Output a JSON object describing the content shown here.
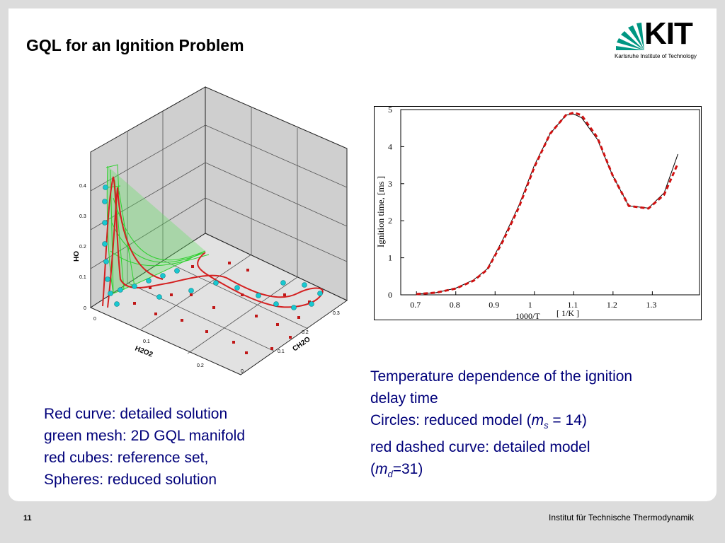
{
  "slide": {
    "title": "GQL for an Ignition Problem",
    "page_number": "11",
    "footer": "Institut für Technische Thermodynamik"
  },
  "logo": {
    "wordmark": "KIT",
    "subtext": "Karlsruhe Institute of Technology",
    "color": "#009682"
  },
  "plot3d": {
    "axis_oh": "OH",
    "axis_h2o2": "H2O2",
    "axis_ch2o": "CH2O",
    "oh_ticks": [
      "0",
      "0.1",
      "0.2",
      "0.3",
      "0.4"
    ],
    "h2o2_ticks": [
      "0",
      "0.1",
      "0.2"
    ],
    "ch2o_ticks": [
      "0",
      "0.1",
      "0.2",
      "0.3"
    ],
    "colors": {
      "curve": "#d42020",
      "mesh": "#2fd02f",
      "sphere": "#18c8d0",
      "cube": "#c01818"
    }
  },
  "chart_data": {
    "type": "line",
    "xlabel": "1000/T",
    "xunit": "[ 1/K ]",
    "ylabel": "Ignition  time, [ms ]",
    "xlim": [
      0.66,
      1.42
    ],
    "ylim": [
      0,
      5
    ],
    "xticks": [
      "0.7",
      "0.8",
      "0.9",
      "1",
      "1.1",
      "1.2",
      "1.3"
    ],
    "yticks": [
      "0",
      "1",
      "2",
      "3",
      "4",
      "5"
    ],
    "series": [
      {
        "style": "solid-black",
        "x": [
          0.7,
          0.75,
          0.8,
          0.845,
          0.88,
          0.92,
          0.96,
          1.0,
          1.04,
          1.08,
          1.1,
          1.12,
          1.16,
          1.2,
          1.24,
          1.29,
          1.33,
          1.365
        ],
        "y": [
          0.02,
          0.06,
          0.18,
          0.4,
          0.7,
          1.5,
          2.4,
          3.5,
          4.35,
          4.85,
          4.88,
          4.78,
          4.2,
          3.2,
          2.4,
          2.34,
          2.75,
          3.8
        ]
      },
      {
        "style": "dashed-red",
        "x": [
          0.7,
          0.75,
          0.8,
          0.845,
          0.88,
          0.92,
          0.96,
          1.0,
          1.04,
          1.08,
          1.1,
          1.12,
          1.16,
          1.2,
          1.24,
          1.29,
          1.33,
          1.365
        ],
        "y": [
          0.02,
          0.06,
          0.17,
          0.38,
          0.68,
          1.45,
          2.35,
          3.45,
          4.35,
          4.85,
          4.92,
          4.85,
          4.25,
          3.2,
          2.4,
          2.33,
          2.7,
          3.55
        ]
      }
    ]
  },
  "captions": {
    "left": [
      "Red curve: detailed solution",
      "green mesh: 2D GQL manifold",
      "red cubes: reference set,",
      "Spheres: reduced solution"
    ],
    "right_line1": "Temperature dependence of the ignition",
    "right_line2": "delay time",
    "right_line3_prefix": "Circles: reduced model (",
    "right_line3_var": "m",
    "right_line3_sub": "s",
    "right_line3_suffix": " = 14)",
    "right_line4": "red dashed curve: detailed model",
    "right_line5_prefix": "(",
    "right_line5_var": "m",
    "right_line5_sub": "d",
    "right_line5_suffix": "=31)"
  }
}
